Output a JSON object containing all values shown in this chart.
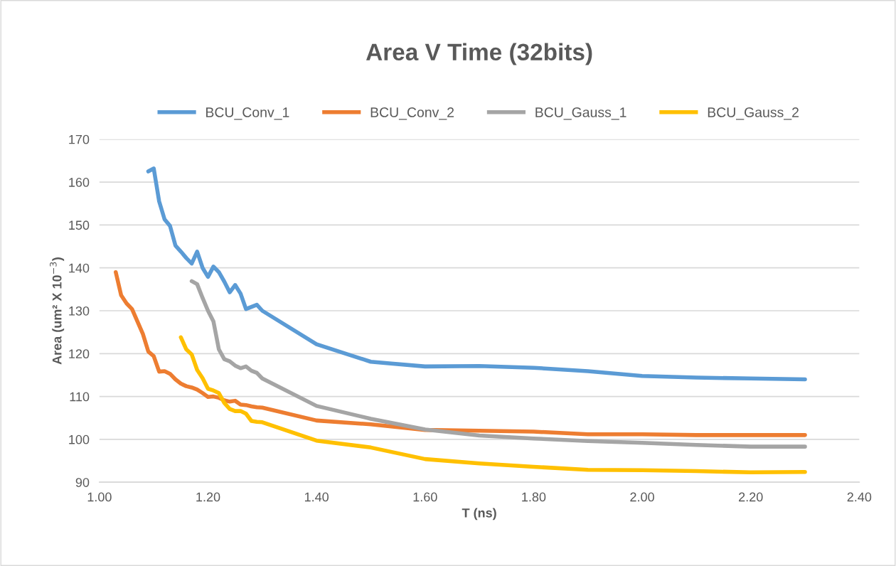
{
  "chart_data": {
    "type": "line",
    "title": "Area V Time (32bits)",
    "xlabel": "T (ns)",
    "ylabel": "Area (um² X 10$^{−3}$)",
    "xlim": [
      1.0,
      2.4
    ],
    "xticks": [
      {
        "value": 1.0,
        "label": "1.00"
      },
      {
        "value": 1.2,
        "label": "1.20"
      },
      {
        "value": 1.4,
        "label": "1.40"
      },
      {
        "value": 1.6,
        "label": "1.60"
      },
      {
        "value": 1.8,
        "label": "1.80"
      },
      {
        "value": 2.0,
        "label": "2.00"
      },
      {
        "value": 2.2,
        "label": "2.20"
      },
      {
        "value": 2.4,
        "label": "2.40"
      }
    ],
    "ylim": [
      90,
      170
    ],
    "yticks": [
      90,
      100,
      110,
      120,
      130,
      140,
      150,
      160,
      170
    ],
    "grid": "y",
    "legend": "top",
    "marker": "none",
    "line_style": "solid",
    "series": [
      {
        "name": "BCU_Conv_1",
        "color": "#5b9bd5",
        "x": [
          1.09,
          1.1,
          1.11,
          1.12,
          1.13,
          1.14,
          1.15,
          1.16,
          1.17,
          1.18,
          1.19,
          1.2,
          1.21,
          1.22,
          1.23,
          1.24,
          1.25,
          1.26,
          1.27,
          1.28,
          1.29,
          1.3,
          1.4,
          1.5,
          1.6,
          1.7,
          1.8,
          1.9,
          2.0,
          2.1,
          2.2,
          2.3
        ],
        "values": [
          162.5,
          163.2,
          155.5,
          151.3,
          149.8,
          145.2,
          143.8,
          142.3,
          141,
          143.8,
          140,
          137.9,
          140.3,
          139,
          136.8,
          134.3,
          136,
          134,
          130.4,
          130.9,
          131.4,
          130,
          122.2,
          118.1,
          117,
          117.1,
          116.7,
          115.9,
          114.8,
          114.4,
          114.2,
          114
        ]
      },
      {
        "name": "BCU_Conv_2",
        "color": "#ed7d31",
        "x": [
          1.03,
          1.04,
          1.05,
          1.06,
          1.07,
          1.08,
          1.09,
          1.1,
          1.11,
          1.12,
          1.13,
          1.14,
          1.15,
          1.16,
          1.17,
          1.18,
          1.19,
          1.2,
          1.21,
          1.22,
          1.23,
          1.24,
          1.25,
          1.26,
          1.27,
          1.28,
          1.29,
          1.3,
          1.4,
          1.5,
          1.6,
          1.7,
          1.8,
          1.9,
          2.0,
          2.1,
          2.2,
          2.3
        ],
        "values": [
          139,
          133.6,
          131.7,
          130.4,
          127.5,
          124.6,
          120.5,
          119.4,
          115.8,
          115.9,
          115.3,
          114,
          113,
          112.4,
          112.1,
          111.6,
          110.8,
          109.9,
          110,
          109.7,
          109.1,
          108.8,
          109,
          108.1,
          108,
          107.7,
          107.5,
          107.4,
          104.4,
          103.5,
          102.2,
          102,
          101.8,
          101.2,
          101.2,
          101,
          101,
          101
        ]
      },
      {
        "name": "BCU_Gauss_1",
        "color": "#a5a5a5",
        "x": [
          1.17,
          1.18,
          1.19,
          1.2,
          1.21,
          1.22,
          1.23,
          1.24,
          1.25,
          1.26,
          1.27,
          1.28,
          1.29,
          1.3,
          1.4,
          1.5,
          1.6,
          1.7,
          1.8,
          1.9,
          2.0,
          2.1,
          2.2,
          2.3
        ],
        "values": [
          136.9,
          136.2,
          133,
          130,
          127.5,
          121,
          118.7,
          118.2,
          117.2,
          116.6,
          117,
          116,
          115.5,
          114.2,
          107.8,
          104.8,
          102.3,
          100.9,
          100.2,
          99.6,
          99.2,
          98.7,
          98.3,
          98.3
        ]
      },
      {
        "name": "BCU_Gauss_2",
        "color": "#ffc000",
        "x": [
          1.15,
          1.16,
          1.17,
          1.18,
          1.19,
          1.2,
          1.21,
          1.22,
          1.23,
          1.24,
          1.25,
          1.26,
          1.27,
          1.28,
          1.29,
          1.3,
          1.4,
          1.5,
          1.6,
          1.7,
          1.8,
          1.9,
          2.0,
          2.1,
          2.2,
          2.3
        ],
        "values": [
          123.8,
          121,
          119.8,
          116.2,
          114.3,
          111.8,
          111.4,
          110.8,
          108.5,
          107.1,
          106.6,
          106.6,
          106,
          104.3,
          104.1,
          104,
          99.7,
          98.1,
          95.4,
          94.4,
          93.6,
          92.9,
          92.8,
          92.6,
          92.3,
          92.4
        ]
      }
    ]
  }
}
